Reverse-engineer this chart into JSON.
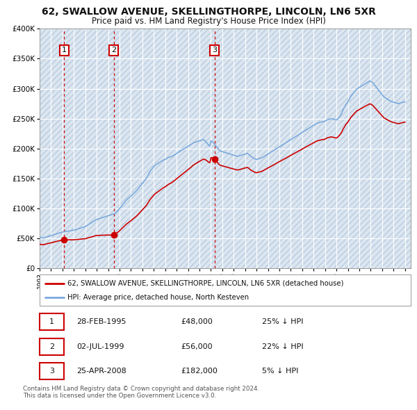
{
  "title": "62, SWALLOW AVENUE, SKELLINGTHORPE, LINCOLN, LN6 5XR",
  "subtitle": "Price paid vs. HM Land Registry's House Price Index (HPI)",
  "background_color": "#ffffff",
  "plot_bg_color": "#dce6f0",
  "hatch_color": "#c8d8e8",
  "grid_color": "#ffffff",
  "ylim": [
    0,
    400000
  ],
  "yticks": [
    0,
    50000,
    100000,
    150000,
    200000,
    250000,
    300000,
    350000,
    400000
  ],
  "ytick_labels": [
    "£0",
    "£50K",
    "£100K",
    "£150K",
    "£200K",
    "£250K",
    "£300K",
    "£350K",
    "£400K"
  ],
  "xlim_start": 1993.0,
  "xlim_end": 2025.5,
  "sale_color": "#cc0000",
  "hpi_color": "#7aaadd",
  "sale_dates": [
    1995.15,
    1999.5,
    2008.32
  ],
  "sale_prices": [
    48000,
    56000,
    182000
  ],
  "sale_labels": [
    "1",
    "2",
    "3"
  ],
  "legend_sale_label": "62, SWALLOW AVENUE, SKELLINGTHORPE, LINCOLN, LN6 5XR (detached house)",
  "legend_hpi_label": "HPI: Average price, detached house, North Kesteven",
  "table_rows": [
    [
      "1",
      "28-FEB-1995",
      "£48,000",
      "25% ↓ HPI"
    ],
    [
      "2",
      "02-JUL-1999",
      "£56,000",
      "22% ↓ HPI"
    ],
    [
      "3",
      "25-APR-2008",
      "£182,000",
      "5% ↓ HPI"
    ]
  ],
  "footer": "Contains HM Land Registry data © Crown copyright and database right 2024.\nThis data is licensed under the Open Government Licence v3.0.",
  "hpi_years": [
    1993.0,
    1993.08,
    1993.17,
    1993.25,
    1993.33,
    1993.42,
    1993.5,
    1993.58,
    1993.67,
    1993.75,
    1993.83,
    1993.92,
    1994.0,
    1994.08,
    1994.17,
    1994.25,
    1994.33,
    1994.42,
    1994.5,
    1994.58,
    1994.67,
    1994.75,
    1994.83,
    1994.92,
    1995.0,
    1995.08,
    1995.17,
    1995.25,
    1995.33,
    1995.42,
    1995.5,
    1995.58,
    1995.67,
    1995.75,
    1995.83,
    1995.92,
    1996.0,
    1996.08,
    1996.17,
    1996.25,
    1996.33,
    1996.42,
    1996.5,
    1996.58,
    1996.67,
    1996.75,
    1996.83,
    1996.92,
    1997.0,
    1997.08,
    1997.17,
    1997.25,
    1997.33,
    1997.42,
    1997.5,
    1997.58,
    1997.67,
    1997.75,
    1997.83,
    1997.92,
    1998.0,
    1998.08,
    1998.17,
    1998.25,
    1998.33,
    1998.42,
    1998.5,
    1998.58,
    1998.67,
    1998.75,
    1998.83,
    1998.92,
    1999.0,
    1999.08,
    1999.17,
    1999.25,
    1999.33,
    1999.42,
    1999.5,
    1999.58,
    1999.67,
    1999.75,
    1999.83,
    1999.92,
    2000.0,
    2000.08,
    2000.17,
    2000.25,
    2000.33,
    2000.42,
    2000.5,
    2000.58,
    2000.67,
    2000.75,
    2000.83,
    2000.92,
    2001.0,
    2001.08,
    2001.17,
    2001.25,
    2001.33,
    2001.42,
    2001.5,
    2001.58,
    2001.67,
    2001.75,
    2001.83,
    2001.92,
    2002.0,
    2002.08,
    2002.17,
    2002.25,
    2002.33,
    2002.42,
    2002.5,
    2002.58,
    2002.67,
    2002.75,
    2002.83,
    2002.92,
    2003.0,
    2003.08,
    2003.17,
    2003.25,
    2003.33,
    2003.42,
    2003.5,
    2003.58,
    2003.67,
    2003.75,
    2003.83,
    2003.92,
    2004.0,
    2004.08,
    2004.17,
    2004.25,
    2004.33,
    2004.42,
    2004.5,
    2004.58,
    2004.67,
    2004.75,
    2004.83,
    2004.92,
    2005.0,
    2005.08,
    2005.17,
    2005.25,
    2005.33,
    2005.42,
    2005.5,
    2005.58,
    2005.67,
    2005.75,
    2005.83,
    2005.92,
    2006.0,
    2006.08,
    2006.17,
    2006.25,
    2006.33,
    2006.42,
    2006.5,
    2006.58,
    2006.67,
    2006.75,
    2006.83,
    2006.92,
    2007.0,
    2007.08,
    2007.17,
    2007.25,
    2007.33,
    2007.42,
    2007.5,
    2007.58,
    2007.67,
    2007.75,
    2007.83,
    2007.92,
    2008.0,
    2008.08,
    2008.17,
    2008.25,
    2008.33,
    2008.42,
    2008.5,
    2008.58,
    2008.67,
    2008.75,
    2008.83,
    2008.92,
    2009.0,
    2009.08,
    2009.17,
    2009.25,
    2009.33,
    2009.42,
    2009.5,
    2009.58,
    2009.67,
    2009.75,
    2009.83,
    2009.92,
    2010.0,
    2010.08,
    2010.17,
    2010.25,
    2010.33,
    2010.42,
    2010.5,
    2010.58,
    2010.67,
    2010.75,
    2010.83,
    2010.92,
    2011.0,
    2011.08,
    2011.17,
    2011.25,
    2011.33,
    2011.42,
    2011.5,
    2011.58,
    2011.67,
    2011.75,
    2011.83,
    2011.92,
    2012.0,
    2012.08,
    2012.17,
    2012.25,
    2012.33,
    2012.42,
    2012.5,
    2012.58,
    2012.67,
    2012.75,
    2012.83,
    2012.92,
    2013.0,
    2013.08,
    2013.17,
    2013.25,
    2013.33,
    2013.42,
    2013.5,
    2013.58,
    2013.67,
    2013.75,
    2013.83,
    2013.92,
    2014.0,
    2014.08,
    2014.17,
    2014.25,
    2014.33,
    2014.42,
    2014.5,
    2014.58,
    2014.67,
    2014.75,
    2014.83,
    2014.92,
    2015.0,
    2015.08,
    2015.17,
    2015.25,
    2015.33,
    2015.42,
    2015.5,
    2015.58,
    2015.67,
    2015.75,
    2015.83,
    2015.92,
    2016.0,
    2016.08,
    2016.17,
    2016.25,
    2016.33,
    2016.42,
    2016.5,
    2016.58,
    2016.67,
    2016.75,
    2016.83,
    2016.92,
    2017.0,
    2017.08,
    2017.17,
    2017.25,
    2017.33,
    2017.42,
    2017.5,
    2017.58,
    2017.67,
    2017.75,
    2017.83,
    2017.92,
    2018.0,
    2018.08,
    2018.17,
    2018.25,
    2018.33,
    2018.42,
    2018.5,
    2018.58,
    2018.67,
    2018.75,
    2018.83,
    2018.92,
    2019.0,
    2019.08,
    2019.17,
    2019.25,
    2019.33,
    2019.42,
    2019.5,
    2019.58,
    2019.67,
    2019.75,
    2019.83,
    2019.92,
    2020.0,
    2020.08,
    2020.17,
    2020.25,
    2020.33,
    2020.42,
    2020.5,
    2020.58,
    2020.67,
    2020.75,
    2020.83,
    2020.92,
    2021.0,
    2021.08,
    2021.17,
    2021.25,
    2021.33,
    2021.42,
    2021.5,
    2021.58,
    2021.67,
    2021.75,
    2021.83,
    2021.92,
    2022.0,
    2022.08,
    2022.17,
    2022.25,
    2022.33,
    2022.42,
    2022.5,
    2022.58,
    2022.67,
    2022.75,
    2022.83,
    2022.92,
    2023.0,
    2023.08,
    2023.17,
    2023.25,
    2023.33,
    2023.42,
    2023.5,
    2023.58,
    2023.67,
    2023.75,
    2023.83,
    2023.92,
    2024.0,
    2024.08,
    2024.17,
    2024.25,
    2024.33,
    2024.42,
    2024.5,
    2024.58,
    2024.67,
    2024.75,
    2024.83,
    2024.92,
    2025.0
  ],
  "hpi_values": [
    52000,
    51500,
    51200,
    51000,
    51200,
    51500,
    52000,
    52500,
    53000,
    53500,
    54000,
    54500,
    55000,
    55500,
    56000,
    56500,
    57000,
    57500,
    58000,
    58500,
    59000,
    59500,
    60000,
    60500,
    61000,
    61200,
    61500,
    61800,
    62000,
    62200,
    62500,
    62800,
    63000,
    63200,
    63500,
    63800,
    64000,
    64500,
    65000,
    65500,
    66000,
    66500,
    67000,
    67500,
    68000,
    68500,
    69000,
    69500,
    70000,
    71000,
    72000,
    73000,
    74000,
    75000,
    76000,
    77000,
    78000,
    79000,
    80000,
    81000,
    82000,
    82500,
    83000,
    83500,
    84000,
    84500,
    85000,
    85500,
    86000,
    86500,
    87000,
    87500,
    88000,
    88500,
    89000,
    89500,
    90000,
    90500,
    91000,
    92000,
    93500,
    95000,
    96500,
    98000,
    100000,
    102000,
    104000,
    106000,
    108000,
    110000,
    112000,
    114000,
    115500,
    117000,
    118000,
    119500,
    121000,
    122500,
    124000,
    125500,
    127000,
    128500,
    130000,
    132000,
    134000,
    136000,
    138000,
    140000,
    142000,
    144000,
    146000,
    148000,
    150000,
    153000,
    156000,
    159000,
    162000,
    164000,
    166000,
    168000,
    170000,
    172000,
    173000,
    174000,
    175000,
    176000,
    177000,
    178000,
    179000,
    180000,
    181000,
    181500,
    182000,
    183000,
    184000,
    185000,
    185500,
    186000,
    186500,
    187000,
    188000,
    189000,
    190000,
    191000,
    192000,
    193000,
    194000,
    195000,
    196000,
    197000,
    198000,
    199000,
    200000,
    201000,
    202000,
    203000,
    204000,
    205000,
    206000,
    207000,
    208000,
    209000,
    210000,
    210500,
    211000,
    211500,
    212000,
    212500,
    213000,
    213500,
    214000,
    214500,
    215000,
    214000,
    213000,
    211000,
    209000,
    207000,
    205000,
    204000,
    213000,
    212000,
    211000,
    209000,
    207000,
    205000,
    203000,
    201000,
    199000,
    197000,
    196000,
    195500,
    195000,
    194500,
    194000,
    193500,
    193000,
    192500,
    192000,
    191500,
    191000,
    190500,
    190000,
    189500,
    189000,
    188500,
    188000,
    187500,
    187000,
    187500,
    188000,
    188500,
    189000,
    189500,
    190000,
    190500,
    191000,
    191500,
    192000,
    191500,
    190000,
    188500,
    187000,
    186000,
    185000,
    184000,
    183000,
    182500,
    182000,
    182500,
    183000,
    183500,
    184000,
    184500,
    185000,
    186000,
    187000,
    188000,
    189000,
    190000,
    191000,
    192000,
    193000,
    194000,
    195000,
    196000,
    197000,
    198000,
    199000,
    200000,
    201000,
    202000,
    203000,
    204000,
    205000,
    206000,
    207000,
    208000,
    209000,
    210000,
    211000,
    212000,
    213000,
    214000,
    215000,
    216000,
    217000,
    218000,
    219000,
    220000,
    221000,
    222000,
    223000,
    224000,
    225000,
    226000,
    227000,
    228000,
    229000,
    230000,
    231000,
    232000,
    233000,
    234000,
    235000,
    236000,
    237000,
    238000,
    239000,
    240000,
    241000,
    242000,
    242500,
    243000,
    243500,
    244000,
    244500,
    245000,
    245000,
    245000,
    246000,
    247000,
    248000,
    248500,
    249000,
    249500,
    250000,
    250000,
    249500,
    249000,
    248500,
    248000,
    248000,
    249000,
    251000,
    253000,
    255000,
    258000,
    261000,
    265000,
    268000,
    271000,
    274000,
    276000,
    278000,
    281000,
    284000,
    287000,
    289000,
    291000,
    293000,
    295000,
    297000,
    299000,
    300000,
    301000,
    302000,
    303000,
    304000,
    305000,
    306000,
    307000,
    308000,
    309000,
    310000,
    311000,
    312000,
    313000,
    312000,
    311000,
    310000,
    308000,
    306000,
    304000,
    302000,
    300000,
    298000,
    296000,
    294000,
    292000,
    290000,
    288000,
    286000,
    285000,
    284000,
    283000,
    282000,
    281000,
    280000,
    279000,
    278500,
    278000,
    277500,
    277000,
    276500,
    276000,
    275500,
    275000,
    275500,
    276000,
    276500,
    277000,
    277500,
    278000,
    278000
  ]
}
